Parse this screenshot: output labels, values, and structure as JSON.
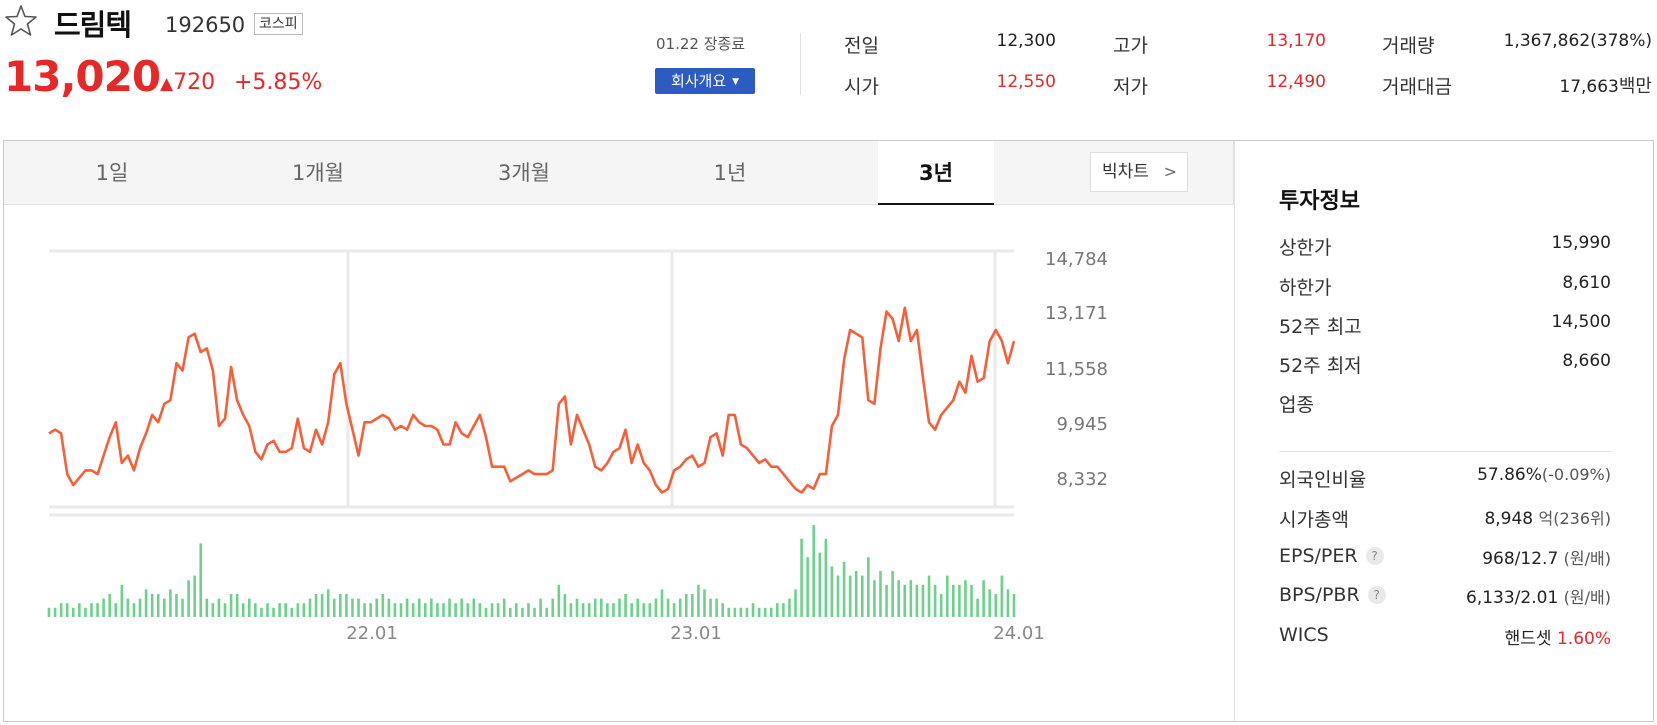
{
  "stock": {
    "name": "드림텍",
    "code": "192650",
    "market": "코스피",
    "price": "13,020",
    "change": "720",
    "change_pct": "+5.85%",
    "date_status": "01.22 장종료",
    "company_button": "회사개요"
  },
  "stats": {
    "prev_close": {
      "label": "전일",
      "value": "12,300"
    },
    "open": {
      "label": "시가",
      "value": "12,550"
    },
    "high": {
      "label": "고가",
      "value": "13,170"
    },
    "low": {
      "label": "저가",
      "value": "12,490"
    },
    "volume": {
      "label": "거래량",
      "value": "1,367,862(378%)"
    },
    "trade_value": {
      "label": "거래대금",
      "value": "17,663",
      "unit": "백만"
    }
  },
  "tabs": [
    "1일",
    "1개월",
    "3개월",
    "1년",
    "3년"
  ],
  "active_tab": "3년",
  "bigchart_label": "빅차트",
  "colors": {
    "up": "#e52828",
    "down": "#2b5bd1",
    "line": "#f4603a",
    "volume": "#6fd08c",
    "accent": "#2c5bc1"
  },
  "chart_data": {
    "type": "line",
    "y_ticks": [
      "14,784",
      "13,171",
      "11,558",
      "9,945",
      "8,332"
    ],
    "x_ticks": [
      "22.01",
      "23.01",
      "24.01"
    ],
    "ylim": [
      8000,
      15200
    ],
    "price": [
      10100,
      10200,
      10100,
      9000,
      8700,
      8900,
      9100,
      9100,
      9000,
      9500,
      10000,
      10400,
      9300,
      9500,
      9100,
      9700,
      10100,
      10600,
      10400,
      10900,
      11000,
      12000,
      11800,
      12700,
      12800,
      12300,
      12400,
      11800,
      10300,
      10500,
      11900,
      11000,
      10600,
      10300,
      9600,
      9400,
      9800,
      9900,
      9600,
      9600,
      9700,
      10500,
      9700,
      9600,
      10200,
      9800,
      10400,
      11700,
      12000,
      10900,
      10200,
      9500,
      10400,
      10400,
      10500,
      10600,
      10500,
      10200,
      10300,
      10200,
      10600,
      10400,
      10300,
      10300,
      10200,
      9800,
      9800,
      10400,
      10100,
      10000,
      10300,
      10600,
      10000,
      9200,
      9200,
      9200,
      8800,
      8900,
      9000,
      9100,
      9000,
      9000,
      9000,
      9100,
      10900,
      11100,
      9800,
      10600,
      10200,
      9800,
      9200,
      9100,
      9300,
      9600,
      9700,
      10200,
      9300,
      9800,
      9300,
      9100,
      8700,
      8500,
      8600,
      9100,
      9200,
      9400,
      9500,
      9200,
      9300,
      10000,
      10100,
      9500,
      10600,
      10600,
      9800,
      9700,
      9500,
      9300,
      9400,
      9200,
      9200,
      9000,
      8800,
      8600,
      8500,
      8700,
      8600,
      9000,
      9000,
      10300,
      10600,
      12100,
      12900,
      12800,
      12700,
      11000,
      10900,
      12400,
      13400,
      13200,
      12600,
      13500,
      12600,
      12900,
      11600,
      10400,
      10200,
      10600,
      10800,
      11000,
      11500,
      11200,
      12200,
      11500,
      11600,
      12600,
      12900,
      12600,
      12000,
      12600
    ],
    "volume": [
      2,
      2,
      3,
      3,
      2,
      3,
      2,
      3,
      3,
      4,
      5,
      3,
      7,
      4,
      3,
      4,
      6,
      5,
      5,
      4,
      6,
      5,
      4,
      8,
      9,
      16,
      4,
      3,
      4,
      3,
      5,
      5,
      3,
      4,
      3,
      2,
      3,
      2,
      3,
      3,
      2,
      3,
      3,
      4,
      5,
      5,
      6,
      4,
      5,
      5,
      4,
      4,
      3,
      3,
      4,
      5,
      4,
      3,
      3,
      4,
      3,
      4,
      3,
      4,
      3,
      3,
      4,
      3,
      4,
      3,
      4,
      3,
      2,
      3,
      3,
      4,
      2,
      3,
      2,
      3,
      2,
      4,
      2,
      4,
      7,
      5,
      3,
      4,
      3,
      3,
      4,
      4,
      3,
      3,
      4,
      5,
      3,
      4,
      3,
      3,
      4,
      6,
      4,
      3,
      4,
      5,
      5,
      7,
      6,
      4,
      4,
      3,
      2,
      2,
      2,
      2,
      3,
      2,
      2,
      2,
      3,
      3,
      4,
      6,
      17,
      13,
      20,
      14,
      17,
      11,
      9,
      12,
      9,
      10,
      9,
      13,
      8,
      10,
      7,
      10,
      8,
      7,
      8,
      7,
      7,
      9,
      7,
      5,
      9,
      7,
      7,
      8,
      7,
      4,
      8,
      6,
      5,
      9,
      6,
      5
    ]
  },
  "invest": {
    "title": "투자정보",
    "upper_limit": {
      "label": "상한가",
      "value": "15,990"
    },
    "lower_limit": {
      "label": "하한가",
      "value": "8,610"
    },
    "high52": {
      "label": "52주 최고",
      "value": "14,500"
    },
    "low52": {
      "label": "52주 최저",
      "value": "8,660"
    },
    "industry": {
      "label": "업종",
      "value": ""
    },
    "foreign": {
      "label": "외국인비율",
      "value": "57.86%",
      "sub": "(-0.09%)"
    },
    "market_cap": {
      "label": "시가총액",
      "value": "8,948",
      "sub": "억(236위)"
    },
    "eps_per": {
      "label": "EPS/PER",
      "value": "968/12.7",
      "sub": "(원/배)"
    },
    "bps_pbr": {
      "label": "BPS/PBR",
      "value": "6,133/2.01",
      "sub": "(원/배)"
    },
    "wics": {
      "label": "WICS",
      "value": "핸드셋",
      "pct": "1.60%"
    }
  }
}
